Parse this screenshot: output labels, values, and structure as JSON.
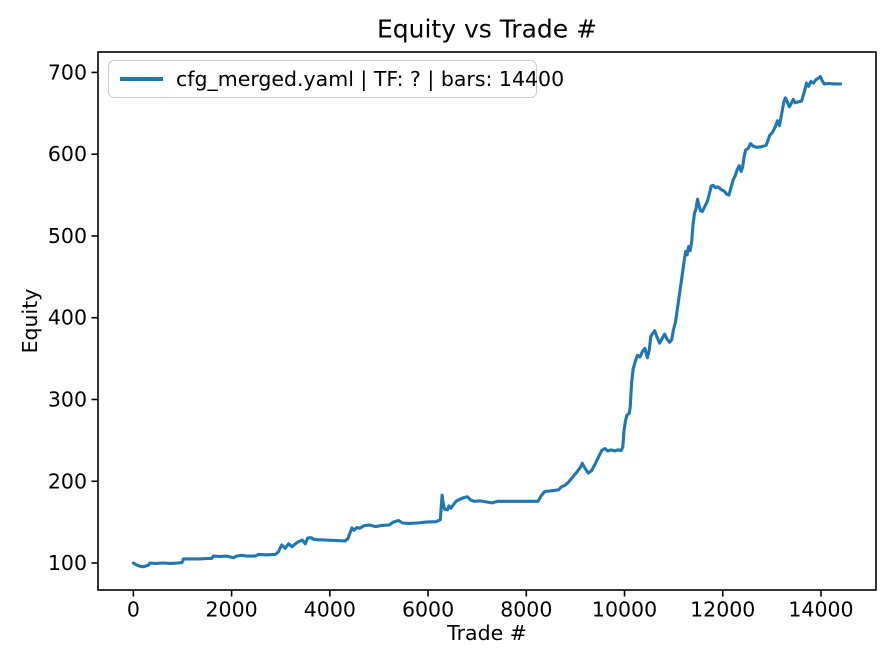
{
  "colors": {
    "line": "#1f77b4",
    "text": "#000000",
    "spine": "#000000",
    "legend_border": "#cccccc",
    "background": "#ffffff"
  },
  "chart_data": {
    "type": "line",
    "title": "Equity vs Trade #",
    "xlabel": "Trade #",
    "ylabel": "Equity",
    "grid": false,
    "legend_position": "upper left",
    "xlim": [
      -720,
      15120
    ],
    "ylim": [
      67,
      725
    ],
    "xticks": [
      0,
      2000,
      4000,
      6000,
      8000,
      10000,
      12000,
      14000
    ],
    "yticks": [
      100,
      200,
      300,
      400,
      500,
      600,
      700
    ],
    "series": [
      {
        "name": "cfg_merged.yaml | TF: ? | bars: 14400",
        "color": "#1f77b4",
        "points": [
          [
            0,
            100
          ],
          [
            70,
            97.5
          ],
          [
            140,
            96
          ],
          [
            200,
            95.5
          ],
          [
            260,
            96.5
          ],
          [
            310,
            97.5
          ],
          [
            335,
            100
          ],
          [
            450,
            99.5
          ],
          [
            600,
            100
          ],
          [
            760,
            99.5
          ],
          [
            900,
            100
          ],
          [
            990,
            100.5
          ],
          [
            1020,
            105
          ],
          [
            1180,
            105
          ],
          [
            1350,
            105
          ],
          [
            1500,
            105.5
          ],
          [
            1590,
            105.5
          ],
          [
            1630,
            108.5
          ],
          [
            1760,
            108
          ],
          [
            1900,
            108.5
          ],
          [
            2040,
            106.5
          ],
          [
            2100,
            108.5
          ],
          [
            2210,
            109.5
          ],
          [
            2320,
            108.5
          ],
          [
            2480,
            108.5
          ],
          [
            2550,
            110.5
          ],
          [
            2700,
            110
          ],
          [
            2890,
            110.5
          ],
          [
            2950,
            113.5
          ],
          [
            3020,
            122
          ],
          [
            3090,
            118
          ],
          [
            3160,
            123.5
          ],
          [
            3230,
            120
          ],
          [
            3310,
            124
          ],
          [
            3370,
            126.5
          ],
          [
            3440,
            128
          ],
          [
            3500,
            123.5
          ],
          [
            3550,
            130.5
          ],
          [
            3620,
            131
          ],
          [
            3670,
            129
          ],
          [
            3760,
            128.5
          ],
          [
            3920,
            128
          ],
          [
            4120,
            127.5
          ],
          [
            4310,
            127
          ],
          [
            4370,
            130
          ],
          [
            4410,
            137
          ],
          [
            4450,
            143
          ],
          [
            4490,
            140
          ],
          [
            4550,
            143.5
          ],
          [
            4610,
            142.5
          ],
          [
            4690,
            145.5
          ],
          [
            4810,
            146.5
          ],
          [
            4930,
            144.5
          ],
          [
            5060,
            146
          ],
          [
            5210,
            146.5
          ],
          [
            5290,
            150
          ],
          [
            5400,
            152
          ],
          [
            5480,
            149
          ],
          [
            5610,
            148.5
          ],
          [
            5770,
            149
          ],
          [
            5960,
            150
          ],
          [
            6160,
            150.5
          ],
          [
            6250,
            153
          ],
          [
            6285,
            183
          ],
          [
            6305,
            175
          ],
          [
            6335,
            166
          ],
          [
            6395,
            165
          ],
          [
            6425,
            170
          ],
          [
            6465,
            167
          ],
          [
            6525,
            172
          ],
          [
            6580,
            176
          ],
          [
            6650,
            178
          ],
          [
            6730,
            180
          ],
          [
            6800,
            181
          ],
          [
            6870,
            177
          ],
          [
            6940,
            175.5
          ],
          [
            7060,
            176
          ],
          [
            7300,
            173.5
          ],
          [
            7420,
            175.5
          ],
          [
            7680,
            175.5
          ],
          [
            7960,
            175.5
          ],
          [
            8240,
            175.5
          ],
          [
            8305,
            182.5
          ],
          [
            8375,
            187.5
          ],
          [
            8530,
            188.5
          ],
          [
            8660,
            189.5
          ],
          [
            8710,
            193
          ],
          [
            8790,
            195
          ],
          [
            8860,
            199
          ],
          [
            8960,
            206
          ],
          [
            9040,
            212
          ],
          [
            9100,
            217
          ],
          [
            9140,
            222
          ],
          [
            9190,
            216.5
          ],
          [
            9260,
            210
          ],
          [
            9330,
            213
          ],
          [
            9410,
            222
          ],
          [
            9480,
            231
          ],
          [
            9540,
            238
          ],
          [
            9600,
            240
          ],
          [
            9660,
            237
          ],
          [
            9730,
            238.5
          ],
          [
            9800,
            237
          ],
          [
            9870,
            238.5
          ],
          [
            9930,
            237.5
          ],
          [
            9965,
            242
          ],
          [
            9990,
            262
          ],
          [
            10020,
            274
          ],
          [
            10050,
            281
          ],
          [
            10095,
            283
          ],
          [
            10115,
            291
          ],
          [
            10145,
            320
          ],
          [
            10175,
            337
          ],
          [
            10215,
            346
          ],
          [
            10265,
            354
          ],
          [
            10315,
            352
          ],
          [
            10365,
            359
          ],
          [
            10415,
            362.5
          ],
          [
            10465,
            351
          ],
          [
            10505,
            361
          ],
          [
            10535,
            377
          ],
          [
            10575,
            381
          ],
          [
            10615,
            384
          ],
          [
            10665,
            376
          ],
          [
            10715,
            369
          ],
          [
            10765,
            374.5
          ],
          [
            10815,
            380
          ],
          [
            10865,
            374
          ],
          [
            10915,
            370
          ],
          [
            10960,
            373
          ],
          [
            10995,
            385
          ],
          [
            11035,
            394
          ],
          [
            11075,
            410
          ],
          [
            11125,
            432
          ],
          [
            11175,
            452
          ],
          [
            11215,
            470
          ],
          [
            11245,
            481
          ],
          [
            11275,
            477
          ],
          [
            11305,
            487
          ],
          [
            11335,
            482
          ],
          [
            11365,
            492
          ],
          [
            11395,
            513
          ],
          [
            11425,
            528
          ],
          [
            11455,
            533
          ],
          [
            11485,
            545
          ],
          [
            11515,
            538
          ],
          [
            11545,
            531
          ],
          [
            11585,
            530
          ],
          [
            11635,
            536
          ],
          [
            11685,
            542
          ],
          [
            11725,
            551
          ],
          [
            11765,
            561
          ],
          [
            11805,
            562
          ],
          [
            11855,
            559
          ],
          [
            11905,
            560
          ],
          [
            11965,
            557
          ],
          [
            12025,
            555
          ],
          [
            12085,
            551
          ],
          [
            12125,
            550
          ],
          [
            12175,
            561
          ],
          [
            12215,
            569
          ],
          [
            12255,
            574
          ],
          [
            12295,
            581
          ],
          [
            12335,
            586
          ],
          [
            12375,
            579
          ],
          [
            12405,
            584
          ],
          [
            12435,
            597
          ],
          [
            12465,
            605
          ],
          [
            12515,
            607
          ],
          [
            12565,
            613
          ],
          [
            12615,
            610
          ],
          [
            12685,
            608.5
          ],
          [
            12785,
            609
          ],
          [
            12885,
            611
          ],
          [
            12955,
            623
          ],
          [
            13015,
            627
          ],
          [
            13065,
            633
          ],
          [
            13115,
            641
          ],
          [
            13155,
            635
          ],
          [
            13205,
            651
          ],
          [
            13245,
            664
          ],
          [
            13275,
            669
          ],
          [
            13315,
            664
          ],
          [
            13355,
            658
          ],
          [
            13395,
            662
          ],
          [
            13435,
            667
          ],
          [
            13475,
            663
          ],
          [
            13535,
            664
          ],
          [
            13605,
            665
          ],
          [
            13665,
            677
          ],
          [
            13705,
            687
          ],
          [
            13745,
            683
          ],
          [
            13795,
            689
          ],
          [
            13845,
            687
          ],
          [
            13895,
            691
          ],
          [
            13945,
            693
          ],
          [
            13985,
            695
          ],
          [
            14025,
            690
          ],
          [
            14065,
            686
          ],
          [
            14160,
            686.5
          ],
          [
            14260,
            686
          ],
          [
            14400,
            686
          ]
        ]
      }
    ]
  }
}
